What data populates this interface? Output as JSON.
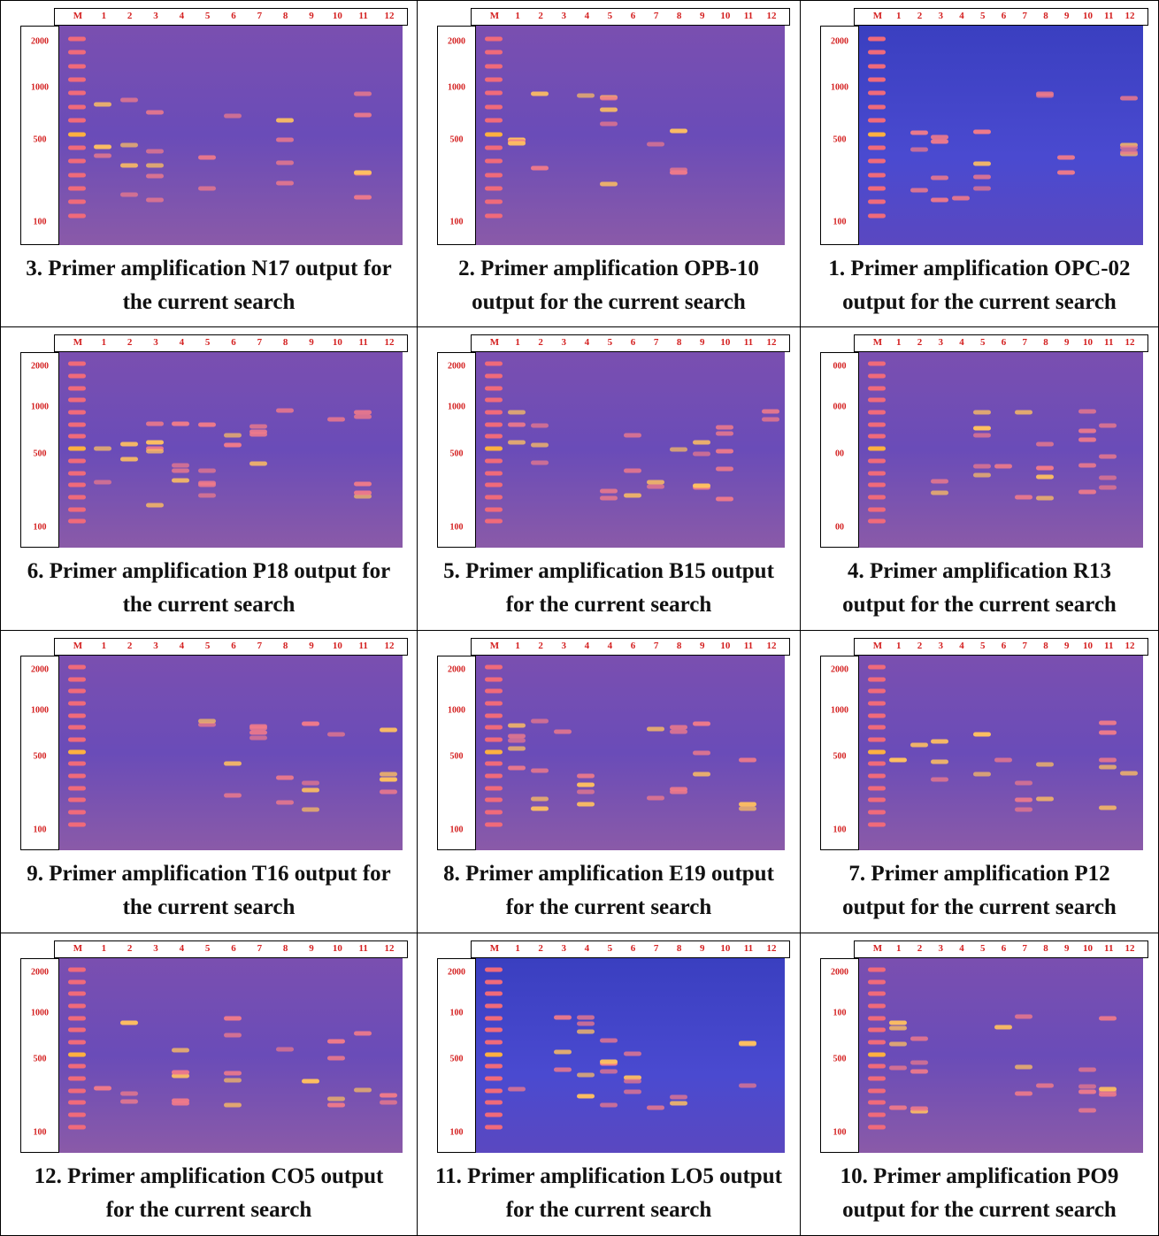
{
  "panels": [
    {
      "lanes": [
        "M",
        "1",
        "2",
        "3",
        "4",
        "5",
        "6",
        "7",
        "8",
        "9",
        "10",
        "11",
        "12"
      ],
      "markers": [
        "2000",
        "1000",
        "500",
        "100"
      ],
      "caption": "3. Primer amplification N17 output for the current search"
    },
    {
      "lanes": [
        "M",
        "1",
        "2",
        "3",
        "4",
        "5",
        "6",
        "7",
        "8",
        "9",
        "10",
        "11",
        "12"
      ],
      "markers": [
        "2000",
        "1000",
        "500",
        "100"
      ],
      "caption": "2. Primer amplification OPB-10 output for the current search"
    },
    {
      "lanes": [
        "M",
        "1",
        "2",
        "3",
        "4",
        "5",
        "6",
        "7",
        "8",
        "9",
        "10",
        "11",
        "12"
      ],
      "markers": [
        "2000",
        "1000",
        "500",
        "100"
      ],
      "caption": "1. Primer amplification OPC-02 output for the current search"
    },
    {
      "lanes": [
        "M",
        "1",
        "2",
        "3",
        "4",
        "5",
        "6",
        "7",
        "8",
        "9",
        "10",
        "11",
        "12"
      ],
      "markers": [
        "2000",
        "1000",
        "500",
        "100"
      ],
      "caption": "6. Primer amplification P18 output for the current search"
    },
    {
      "lanes": [
        "M",
        "1",
        "2",
        "3",
        "4",
        "5",
        "6",
        "7",
        "8",
        "9",
        "10",
        "11",
        "12"
      ],
      "markers": [
        "2000",
        "1000",
        "500",
        "100"
      ],
      "caption": "5. Primer amplification B15 output for the current search"
    },
    {
      "lanes": [
        "M",
        "1",
        "2",
        "3",
        "4",
        "5",
        "6",
        "7",
        "8",
        "9",
        "10",
        "11",
        "12"
      ],
      "markers": [
        "000",
        "000",
        "00",
        "00"
      ],
      "caption": "4. Primer amplification R13 output for the current search"
    },
    {
      "lanes": [
        "M",
        "1",
        "2",
        "3",
        "4",
        "5",
        "6",
        "7",
        "8",
        "9",
        "10",
        "11",
        "12"
      ],
      "markers": [
        "2000",
        "1000",
        "500",
        "100"
      ],
      "caption": "9. Primer amplification T16 output for the current search"
    },
    {
      "lanes": [
        "M",
        "1",
        "2",
        "3",
        "4",
        "4",
        "6",
        "7",
        "8",
        "9",
        "10",
        "11",
        "12"
      ],
      "markers": [
        "2000",
        "1000",
        "500",
        "100"
      ],
      "caption": "8. Primer amplification E19 output for the current search"
    },
    {
      "lanes": [
        "M",
        "1",
        "2",
        "3",
        "4",
        "5",
        "6",
        "7",
        "8",
        "9",
        "10",
        "11",
        "12"
      ],
      "markers": [
        "2000",
        "1000",
        "500",
        "100"
      ],
      "caption": "7. Primer amplification P12 output for the current search"
    },
    {
      "lanes": [
        "M",
        "1",
        "2",
        "3",
        "4",
        "5",
        "6",
        "7",
        "8",
        "9",
        "10",
        "11",
        "12"
      ],
      "markers": [
        "2000",
        "1000",
        "500",
        "100"
      ],
      "caption": "12. Primer amplification CO5 output for the current search"
    },
    {
      "lanes": [
        "M",
        "1",
        "2",
        "3",
        "4",
        "5",
        "6",
        "7",
        "8",
        "9",
        "10",
        "11",
        "12"
      ],
      "markers": [
        "2000",
        "100",
        "500",
        "100"
      ],
      "caption": "11. Primer amplification LO5 output for the current search"
    },
    {
      "lanes": [
        "M",
        "1",
        "2",
        "3",
        "4",
        "5",
        "6",
        "7",
        "8",
        "9",
        "10",
        "11",
        "12"
      ],
      "markers": [
        "2000",
        "100",
        "500",
        "100"
      ],
      "caption": "10. Primer amplification PO9 output for the current search"
    }
  ]
}
